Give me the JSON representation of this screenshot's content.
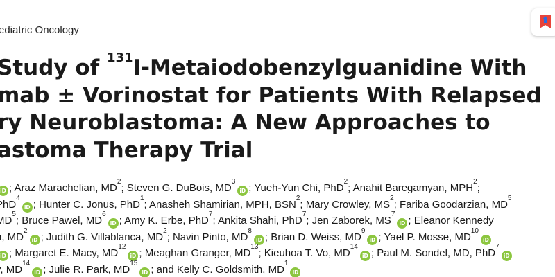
{
  "journal": "ediatric Oncology",
  "title": {
    "line1_prefix": "Study of ",
    "line1_sup": "131",
    "line1_suffix": "I-Metaiodobenzylguanidine With",
    "line2": "mab ± Vorinostat for Patients With Relapsed",
    "line3": "ry Neuroblastoma: A New Approaches to",
    "line4": "astoma Therapy Trial"
  },
  "orcid_label": "iD",
  "authors": {
    "l1": {
      "a": "; Araz Marachelian, MD",
      "a_sup": "2",
      "b": "; Steven G. DuBois, MD",
      "b_sup": "3",
      "c": "; Yueh-Yun Chi, PhD",
      "c_sup": "2",
      "d": "; Anahit Baregamyan, MPH",
      "d_sup": "2",
      "e": ";"
    },
    "l2": {
      "a": "PhD",
      "a_sup": "4",
      "b": "; Hunter C. Jonus, PhD",
      "b_sup": "1",
      "c": "; Anasheh Shamirian, MPH, BSN",
      "c_sup": "2",
      "d": "; Mary Crowley, MS",
      "d_sup": "2",
      "e": "; Fariba Goodarzian, MD",
      "e_sup": "5"
    },
    "l3": {
      "a": "MD",
      "a_sup": "5",
      "b": "; Bruce Pawel, MD",
      "b_sup": "6",
      "c": "; Amy K. Erbe, PhD",
      "c_sup": "7",
      "d": "; Ankita Shahi, PhD",
      "d_sup": "7",
      "e": "; Jen Zaborek, MS",
      "e_sup": "7",
      "f": "; Eleanor Kennedy"
    },
    "l4": {
      "a": "h, MD",
      "a_sup": "2",
      "b": "; Judith G. Villablanca, MD",
      "b_sup": "2",
      "c": "; Navin Pinto, MD",
      "c_sup": "8",
      "d": "; Brian D. Weiss, MD",
      "d_sup": "9",
      "e": "; Yael P. Mosse, MD",
      "e_sup": "10"
    },
    "l5": {
      "a": "; Margaret E. Macy, MD",
      "a_sup": "12",
      "b": "; Meaghan Granger, MD",
      "b_sup": "13",
      "c": "; Kieuhoa T. Vo, MD",
      "c_sup": "14",
      "d": "; Paul M. Sondel, MD, PhD",
      "d_sup": "7"
    },
    "l6": {
      "a": "y, MD",
      "a_sup": "14",
      "b": "; Julie R. Park, MD",
      "b_sup": "15",
      "c": "; and Kelly C. Goldsmith, MD",
      "c_sup": "1"
    }
  },
  "colors": {
    "orcid_green": "#8cc63f",
    "bookmark_red": "#e8433a",
    "bookmark_blue": "#2d6cdf",
    "text": "#1a1a1a"
  }
}
